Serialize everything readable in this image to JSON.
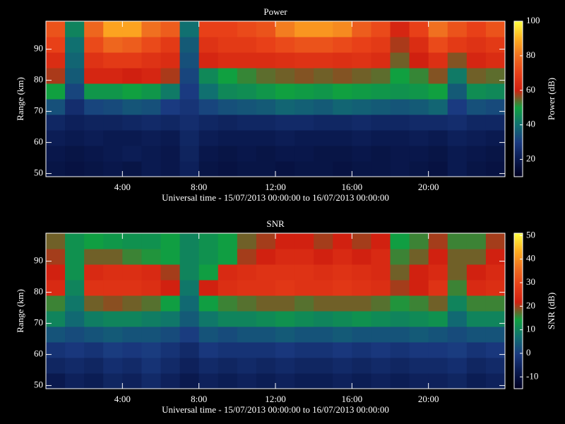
{
  "chart_data": [
    {
      "type": "heatmap",
      "title": "Power",
      "xlabel": "Universal time - 15/07/2013 00:00:00 to 16/07/2013 00:00:00",
      "ylabel": "Range (km)",
      "clabel": "Power (dB)",
      "xlim": [
        0,
        24
      ],
      "ylim": [
        49,
        99
      ],
      "clim": [
        10,
        100
      ],
      "xticks": [
        {
          "value": 4,
          "label": "4:00"
        },
        {
          "value": 8,
          "label": "8:00"
        },
        {
          "value": 12,
          "label": "12:00"
        },
        {
          "value": 16,
          "label": "16:00"
        },
        {
          "value": 20,
          "label": "20:00"
        }
      ],
      "yticks": [
        50,
        60,
        70,
        80,
        90
      ],
      "cticks": [
        20,
        40,
        60,
        80,
        100
      ],
      "colormap": [
        "#000020",
        "#0a1a50",
        "#1a3a80",
        "#107070",
        "#10a040",
        "#d02010",
        "#e84018",
        "#f07020",
        "#ffb020",
        "#ffff40"
      ],
      "xbins": [
        0,
        1,
        2,
        3,
        4,
        5,
        6,
        7,
        8,
        9,
        10,
        11,
        12,
        13,
        14,
        15,
        16,
        17,
        18,
        19,
        20,
        21,
        22,
        23,
        24
      ],
      "ybins": [
        49,
        54,
        59,
        64,
        69,
        74,
        79,
        84,
        89,
        94,
        99
      ],
      "z": [
        [
          18,
          17,
          18,
          19,
          18,
          20,
          19,
          22,
          18,
          17,
          18,
          18,
          17,
          18,
          18,
          17,
          18,
          18,
          19,
          18,
          17,
          20,
          18,
          17
        ],
        [
          19,
          18,
          19,
          20,
          21,
          20,
          19,
          23,
          19,
          18,
          19,
          18,
          19,
          19,
          18,
          18,
          19,
          18,
          19,
          19,
          18,
          20,
          19,
          18
        ],
        [
          21,
          20,
          21,
          20,
          20,
          21,
          20,
          24,
          21,
          20,
          20,
          20,
          21,
          20,
          20,
          20,
          21,
          20,
          20,
          21,
          20,
          22,
          21,
          20
        ],
        [
          24,
          22,
          23,
          23,
          24,
          25,
          24,
          26,
          24,
          23,
          24,
          24,
          25,
          25,
          24,
          24,
          25,
          24,
          24,
          25,
          25,
          26,
          24,
          24
        ],
        [
          34,
          26,
          32,
          33,
          35,
          34,
          30,
          28,
          32,
          34,
          35,
          36,
          38,
          37,
          36,
          38,
          37,
          36,
          35,
          36,
          38,
          30,
          34,
          33
        ],
        [
          50,
          32,
          48,
          48,
          50,
          48,
          42,
          30,
          40,
          45,
          46,
          48,
          50,
          49,
          48,
          50,
          49,
          48,
          47,
          48,
          50,
          36,
          46,
          45
        ],
        [
          58,
          36,
          62,
          62,
          60,
          62,
          58,
          32,
          45,
          50,
          52,
          54,
          55,
          56,
          55,
          56,
          55,
          54,
          50,
          52,
          56,
          42,
          55,
          54
        ],
        [
          64,
          38,
          66,
          68,
          68,
          66,
          64,
          34,
          62,
          64,
          64,
          64,
          65,
          66,
          66,
          65,
          66,
          64,
          55,
          60,
          65,
          56,
          62,
          64
        ],
        [
          70,
          40,
          72,
          78,
          76,
          72,
          68,
          36,
          66,
          68,
          68,
          70,
          72,
          74,
          74,
          72,
          70,
          68,
          58,
          64,
          72,
          68,
          66,
          68
        ],
        [
          74,
          44,
          78,
          88,
          88,
          80,
          76,
          40,
          70,
          70,
          72,
          74,
          82,
          86,
          86,
          84,
          76,
          72,
          62,
          70,
          80,
          74,
          70,
          74
        ]
      ]
    },
    {
      "type": "heatmap",
      "title": "SNR",
      "xlabel": "Universal time - 15/07/2013 00:00:00 to 16/07/2013 00:00:00",
      "ylabel": "Range (km)",
      "clabel": "SNR (dB)",
      "xlim": [
        0,
        24
      ],
      "ylim": [
        49,
        99
      ],
      "clim": [
        -15,
        51
      ],
      "xticks": [
        {
          "value": 4,
          "label": "4:00"
        },
        {
          "value": 8,
          "label": "8:00"
        },
        {
          "value": 12,
          "label": "12:00"
        },
        {
          "value": 16,
          "label": "16:00"
        },
        {
          "value": 20,
          "label": "20:00"
        }
      ],
      "yticks": [
        50,
        60,
        70,
        80,
        90
      ],
      "cticks": [
        -10,
        0,
        10,
        20,
        30,
        40,
        50
      ],
      "colormap": [
        "#000020",
        "#0a1a50",
        "#1a3a80",
        "#107070",
        "#10a040",
        "#d02010",
        "#e84018",
        "#f07020",
        "#ffb020",
        "#ffff40"
      ],
      "xbins": [
        0,
        1,
        2,
        3,
        4,
        5,
        6,
        7,
        8,
        9,
        10,
        11,
        12,
        13,
        14,
        15,
        16,
        17,
        18,
        19,
        20,
        21,
        22,
        23,
        24
      ],
      "ybins": [
        49,
        54,
        59,
        64,
        69,
        74,
        79,
        84,
        89,
        94,
        99
      ],
      "z": [
        [
          -8,
          -6,
          -7,
          -5,
          -6,
          -4,
          -6,
          -8,
          -6,
          -7,
          -6,
          -7,
          -6,
          -7,
          -7,
          -6,
          -7,
          -6,
          -7,
          -6,
          -6,
          -5,
          -7,
          -6
        ],
        [
          -5,
          -4,
          -5,
          -3,
          -4,
          -2,
          -4,
          -6,
          -4,
          -5,
          -4,
          -5,
          -4,
          -5,
          -5,
          -4,
          -5,
          -4,
          -5,
          -4,
          -4,
          -3,
          -5,
          -4
        ],
        [
          -2,
          -1,
          -2,
          0,
          -1,
          0,
          -2,
          -4,
          -1,
          -2,
          -2,
          -2,
          -1,
          -2,
          -2,
          -1,
          -2,
          -1,
          -2,
          -1,
          -1,
          0,
          -2,
          -1
        ],
        [
          3,
          2,
          3,
          4,
          3,
          3,
          2,
          0,
          3,
          2,
          3,
          3,
          4,
          3,
          3,
          4,
          3,
          3,
          3,
          4,
          3,
          2,
          3,
          3
        ],
        [
          10,
          6,
          9,
          10,
          10,
          9,
          8,
          4,
          8,
          10,
          10,
          11,
          12,
          11,
          10,
          11,
          12,
          11,
          10,
          11,
          12,
          6,
          10,
          10
        ],
        [
          16,
          8,
          18,
          19,
          18,
          17,
          14,
          6,
          14,
          16,
          17,
          18,
          18,
          17,
          18,
          18,
          18,
          17,
          15,
          16,
          18,
          10,
          16,
          16
        ],
        [
          24,
          10,
          26,
          26,
          26,
          25,
          22,
          8,
          22,
          25,
          26,
          26,
          27,
          26,
          26,
          27,
          26,
          25,
          20,
          22,
          26,
          16,
          24,
          25
        ],
        [
          22,
          12,
          24,
          25,
          25,
          24,
          20,
          10,
          14,
          24,
          25,
          26,
          26,
          26,
          25,
          26,
          25,
          24,
          18,
          22,
          24,
          18,
          22,
          24
        ],
        [
          20,
          12,
          18,
          18,
          16,
          15,
          14,
          10,
          12,
          14,
          20,
          22,
          24,
          24,
          22,
          24,
          22,
          24,
          16,
          18,
          22,
          18,
          18,
          22
        ],
        [
          18,
          12,
          14,
          13,
          12,
          12,
          14,
          10,
          12,
          14,
          18,
          20,
          22,
          22,
          20,
          22,
          20,
          22,
          14,
          16,
          20,
          16,
          16,
          20
        ]
      ]
    }
  ]
}
